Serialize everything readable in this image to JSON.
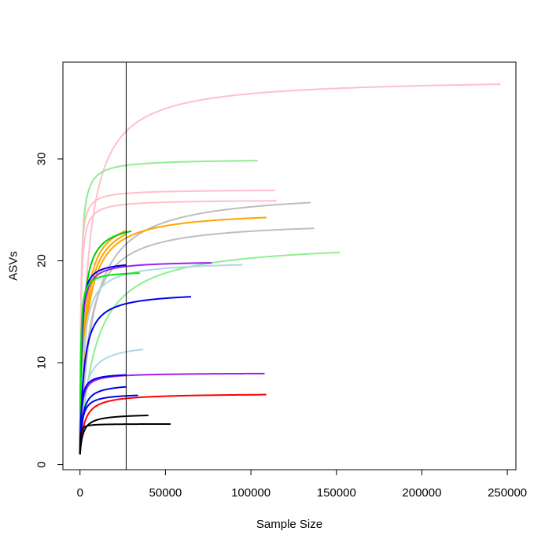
{
  "chart_data": {
    "type": "line",
    "title": "",
    "xlabel": "Sample Size",
    "ylabel": "ASVs",
    "xlim": [
      -10000,
      255000
    ],
    "ylim": [
      -0.5,
      39.5
    ],
    "x_ticks": [
      0,
      50000,
      100000,
      150000,
      200000,
      250000
    ],
    "x_tick_labels": [
      "0",
      "50000",
      "100000",
      "150000",
      "200000",
      "250000"
    ],
    "y_ticks": [
      0,
      10,
      20,
      30
    ],
    "y_tick_labels": [
      "0",
      "10",
      "20",
      "30"
    ],
    "vline": 27000,
    "grid": false,
    "legend": "none",
    "series": [
      {
        "color": "#ffc0cb",
        "max_x": 246000,
        "asymptote": 38,
        "start": 1,
        "k": 4500
      },
      {
        "color": "#90ee90",
        "max_x": 104000,
        "asymptote": 30,
        "start": 1,
        "k": 600
      },
      {
        "color": "#ffc0cb",
        "max_x": 114000,
        "asymptote": 27,
        "start": 1,
        "k": 400
      },
      {
        "color": "#bebebe",
        "max_x": 135000,
        "asymptote": 27,
        "start": 1,
        "k": 7000
      },
      {
        "color": "#ffc0cb",
        "max_x": 115000,
        "asymptote": 26,
        "start": 1,
        "k": 500
      },
      {
        "color": "#ffa500",
        "max_x": 109000,
        "asymptote": 25,
        "start": 1,
        "k": 3500
      },
      {
        "color": "#ffa500",
        "max_x": 27000,
        "asymptote": 25,
        "start": 1,
        "k": 2500
      },
      {
        "color": "#ffa500",
        "max_x": 27000,
        "asymptote": 25,
        "start": 1,
        "k": 3000
      },
      {
        "color": "#bebebe",
        "max_x": 137000,
        "asymptote": 24,
        "start": 1,
        "k": 5000
      },
      {
        "color": "#00cd00",
        "max_x": 30000,
        "asymptote": 24,
        "start": 1,
        "k": 1500
      },
      {
        "color": "#90ee90",
        "max_x": 152000,
        "asymptote": 22,
        "start": 1,
        "k": 9000
      },
      {
        "color": "#a020f0",
        "max_x": 77000,
        "asymptote": 20,
        "start": 1,
        "k": 800
      },
      {
        "color": "#add8e6",
        "max_x": 95000,
        "asymptote": 20,
        "start": 1,
        "k": 2000
      },
      {
        "color": "#0000ee",
        "max_x": 27000,
        "asymptote": 20,
        "start": 1,
        "k": 600
      },
      {
        "color": "#00ee00",
        "max_x": 35000,
        "asymptote": 19,
        "start": 1,
        "k": 400
      },
      {
        "color": "#0000ee",
        "max_x": 65000,
        "asymptote": 17,
        "start": 1,
        "k": 2200
      },
      {
        "color": "#add8e6",
        "max_x": 37000,
        "asymptote": 12,
        "start": 1,
        "k": 2500
      },
      {
        "color": "#a020f0",
        "max_x": 108000,
        "asymptote": 9,
        "start": 1,
        "k": 900
      },
      {
        "color": "#0000ee",
        "max_x": 27000,
        "asymptote": 9,
        "start": 1,
        "k": 700
      },
      {
        "color": "#0000ee",
        "max_x": 27000,
        "asymptote": 8,
        "start": 1,
        "k": 1500
      },
      {
        "color": "#ff0000",
        "max_x": 109000,
        "asymptote": 7,
        "start": 1,
        "k": 2500
      },
      {
        "color": "#0000ee",
        "max_x": 34000,
        "asymptote": 7,
        "start": 1,
        "k": 1200
      },
      {
        "color": "#000000",
        "max_x": 40000,
        "asymptote": 5,
        "start": 1,
        "k": 1800
      },
      {
        "color": "#000000",
        "max_x": 53000,
        "asymptote": 4,
        "start": 1,
        "k": 300
      }
    ]
  }
}
